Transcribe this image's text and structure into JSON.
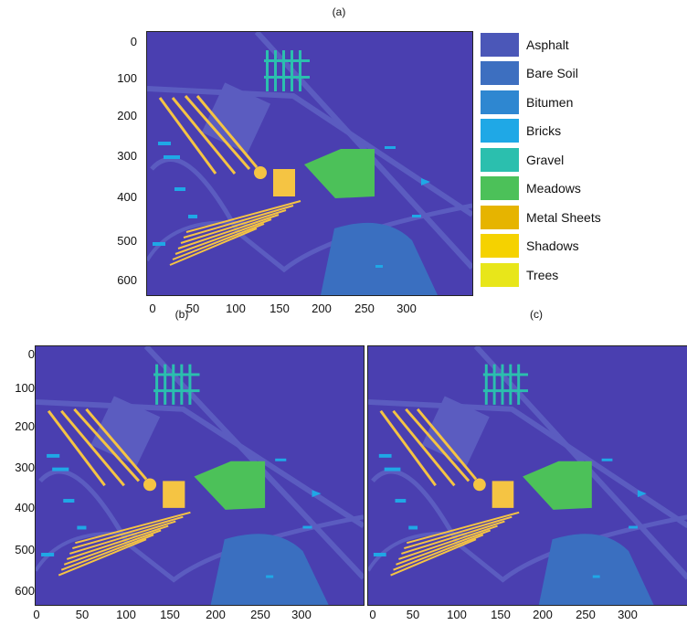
{
  "figure": {
    "panels": [
      {
        "id": "a",
        "title": "(a)"
      },
      {
        "id": "b",
        "title": "(b)"
      },
      {
        "id": "c",
        "title": "(c)"
      }
    ],
    "y_ticks": [
      "0",
      "100",
      "200",
      "300",
      "400",
      "500",
      "600"
    ],
    "x_ticks": [
      "0",
      "50",
      "100",
      "150",
      "200",
      "250",
      "300"
    ]
  },
  "legend": {
    "items": [
      {
        "label": "Asphalt",
        "color": "#4b57b8"
      },
      {
        "label": "Bare Soil",
        "color": "#3d6fc0"
      },
      {
        "label": "Bitumen",
        "color": "#2e87d1"
      },
      {
        "label": "Bricks",
        "color": "#1fa8e6"
      },
      {
        "label": "Gravel",
        "color": "#2bbfae"
      },
      {
        "label": "Meadows",
        "color": "#4cc159"
      },
      {
        "label": "Metal Sheets",
        "color": "#e6b400"
      },
      {
        "label": "Shadows",
        "color": "#f5d200"
      },
      {
        "label": "Trees",
        "color": "#e8e61a"
      }
    ]
  },
  "colors": {
    "background": "#4a3fb0",
    "road": "#5b5cc0",
    "water": "#3a6fc0",
    "meadows": "#4cc159",
    "gravel": "#2bbfae",
    "bricks": "#1fa8e6",
    "shadows": "#f5c443"
  }
}
